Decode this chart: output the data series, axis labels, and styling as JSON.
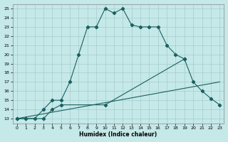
{
  "xlabel": "Humidex (Indice chaleur)",
  "xlim": [
    -0.5,
    23.5
  ],
  "ylim": [
    12.5,
    25.5
  ],
  "yticks": [
    13,
    14,
    15,
    16,
    17,
    18,
    19,
    20,
    21,
    22,
    23,
    24,
    25
  ],
  "xticks": [
    0,
    1,
    2,
    3,
    4,
    5,
    6,
    7,
    8,
    9,
    10,
    11,
    12,
    13,
    14,
    15,
    16,
    17,
    18,
    19,
    20,
    21,
    22,
    23
  ],
  "bg_color": "#c5e8e8",
  "line_color": "#1a6060",
  "grid_color": "#a8cccc",
  "curve1_x": [
    0,
    1,
    2,
    3,
    4,
    5,
    6,
    7,
    8,
    9,
    10,
    11,
    12,
    13,
    14,
    15,
    16,
    17,
    18,
    19
  ],
  "curve1_y": [
    13,
    13,
    13,
    14,
    15,
    15,
    17,
    20,
    23,
    23,
    25,
    24.5,
    25,
    23.2,
    23,
    23,
    23,
    21,
    20,
    19.5
  ],
  "curve2_x": [
    0,
    1,
    3,
    4,
    5,
    10,
    19,
    20,
    21,
    22,
    23
  ],
  "curve2_y": [
    13,
    13,
    13,
    14,
    14.5,
    14.5,
    19.5,
    17,
    16,
    15.2,
    14.5
  ],
  "line3_x": [
    0,
    23
  ],
  "line3_y": [
    13,
    17
  ]
}
